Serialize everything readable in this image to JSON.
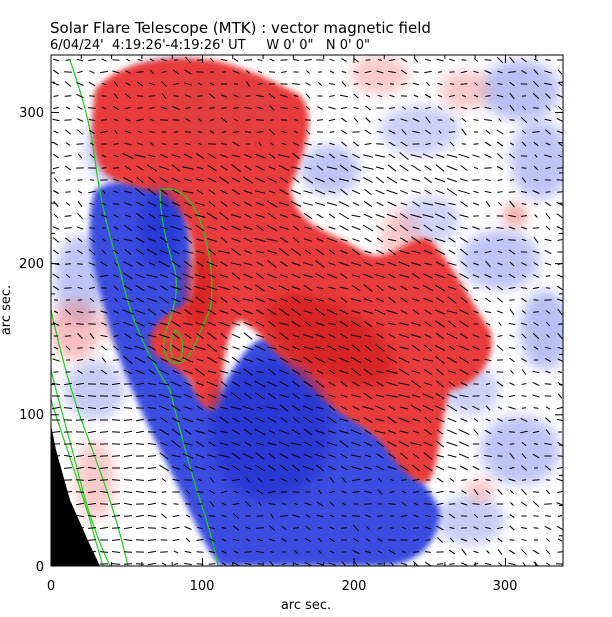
{
  "figure": {
    "title": "Solar Flare Telescope (MTK) : vector magnetic field",
    "subtitle": "6/04/24'  4:19:26'-4:19:26' UT     W 0' 0\"   N 0' 0\"",
    "xlabel": "arc sec.",
    "ylabel": "arc sec."
  },
  "chart_data": {
    "type": "heatmap",
    "title": "Solar Flare Telescope (MTK) : vector magnetic field",
    "xlabel": "arc sec.",
    "ylabel": "arc sec.",
    "xlim": [
      0,
      338
    ],
    "ylim": [
      0,
      338
    ],
    "xticks": [
      "0",
      "100",
      "200",
      "300"
    ],
    "yticks": [
      "0",
      "100",
      "200",
      "300"
    ],
    "xtick_values": [
      0,
      100,
      200,
      300
    ],
    "ytick_values": [
      0,
      100,
      200,
      300
    ],
    "colors": {
      "positive_polarity": "#e83a3a",
      "negative_polarity": "#3a4ee0",
      "contours": "#22cc22",
      "off_disk": "#000000",
      "vectors": "#000000"
    }
  }
}
